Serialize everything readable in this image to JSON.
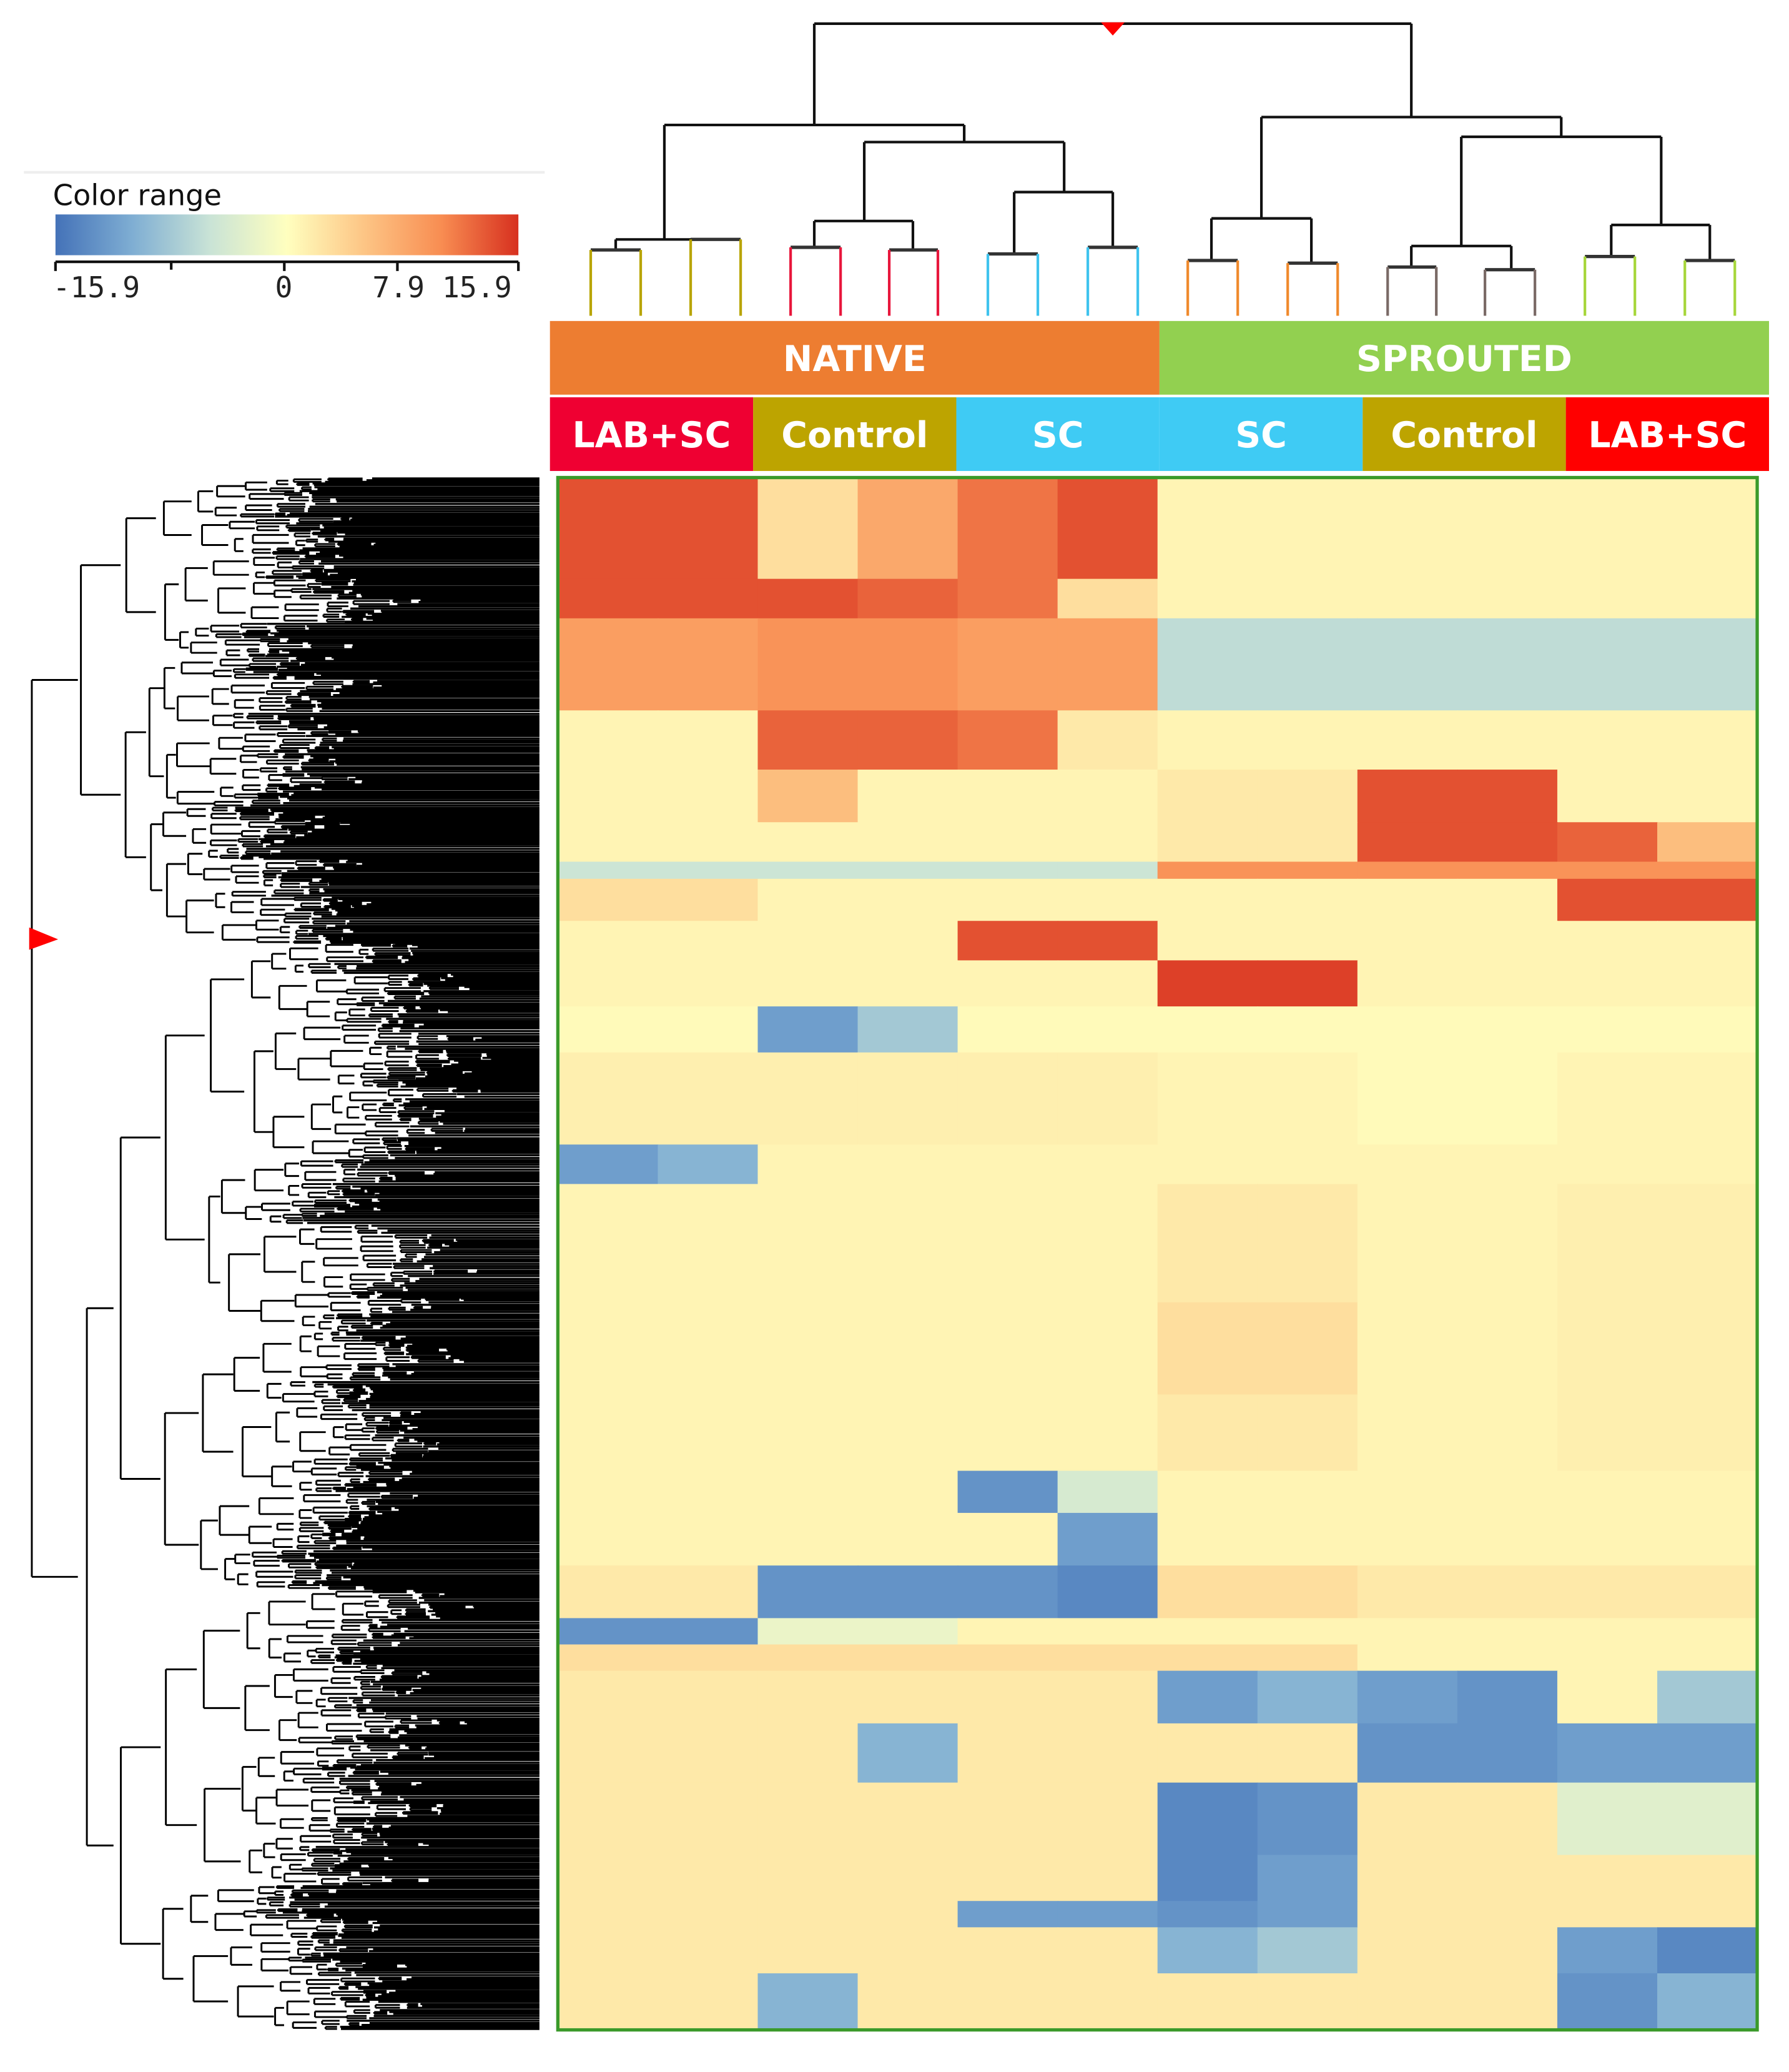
{
  "chart_data": {
    "type": "heatmap",
    "legend": {
      "title": "Color range",
      "ticks": [
        "-15.9",
        "0",
        "7.9",
        "15.9"
      ],
      "min": -15.9,
      "max": 15.9,
      "colors": [
        "#4472B8",
        "#7FAED3",
        "#C9E3D6",
        "#FFFFBF",
        "#FDC585",
        "#F88D52",
        "#D7301F"
      ],
      "placement": "top-left"
    },
    "column_groups": [
      {
        "label": "NATIVE",
        "color": "#ED7D31",
        "span": 6
      },
      {
        "label": "SPROUTED",
        "color": "#92D050",
        "span": 6
      }
    ],
    "column_subgroups": [
      {
        "label": "LAB+SC",
        "color": "#EF0032",
        "span": 2
      },
      {
        "label": "Control",
        "color": "#BDA400",
        "span": 2
      },
      {
        "label": "SC",
        "color": "#3FCBF4",
        "span": 2
      },
      {
        "label": "SC",
        "color": "#3FCBF4",
        "span": 2
      },
      {
        "label": "Control",
        "color": "#BDA400",
        "span": 2
      },
      {
        "label": "LAB+SC",
        "color": "#FF0000",
        "span": 2
      }
    ],
    "column_dendrogram_colors": [
      "#B8A400",
      "#E8173C",
      "#3FC3EE",
      "#F08A2C",
      "#7A6A66",
      "#A6D63A"
    ],
    "row_blocks": [
      {
        "rows": 77,
        "values": [
          14,
          14,
          3,
          8,
          12,
          14,
          1,
          1,
          1,
          1,
          1,
          1
        ]
      },
      {
        "rows": 30,
        "values": [
          14,
          14,
          14,
          13,
          12,
          3,
          1,
          1,
          1,
          1,
          1,
          1
        ]
      },
      {
        "rows": 70,
        "values": [
          9,
          9,
          10,
          10,
          9,
          9,
          -6,
          -6,
          -6,
          -6,
          -6,
          -6
        ]
      },
      {
        "rows": 45,
        "values": [
          1,
          1,
          13,
          13,
          12,
          2,
          1,
          1,
          1,
          1,
          1,
          1
        ]
      },
      {
        "rows": 40,
        "values": [
          1,
          1,
          6,
          1,
          1,
          1,
          2,
          2,
          14,
          14,
          1,
          1
        ]
      },
      {
        "rows": 30,
        "values": [
          1,
          1,
          1,
          1,
          1,
          1,
          2,
          2,
          14,
          14,
          13,
          6
        ]
      },
      {
        "rows": 13,
        "values": [
          -5,
          -5,
          -5,
          -5,
          -5,
          -5,
          10,
          10,
          10,
          10,
          10,
          10
        ]
      },
      {
        "rows": 32,
        "values": [
          3,
          3,
          1,
          1,
          1,
          1,
          1,
          1,
          1,
          1,
          14,
          14
        ]
      },
      {
        "rows": 30,
        "values": [
          1,
          1,
          1,
          1,
          14,
          14,
          1,
          1,
          1,
          1,
          1,
          1
        ]
      },
      {
        "rows": 35,
        "values": [
          1,
          1,
          1,
          1,
          1,
          1,
          15,
          15,
          1,
          1,
          1,
          1
        ]
      },
      {
        "rows": 35,
        "values": [
          0.5,
          0.5,
          -12,
          -8,
          0.5,
          0.5,
          0.5,
          0.5,
          0.5,
          0.5,
          0.5,
          0.5
        ]
      },
      {
        "rows": 70,
        "values": [
          1.5,
          1.5,
          1.5,
          1.5,
          1.5,
          1.5,
          1,
          1,
          0.5,
          0.5,
          1,
          1
        ]
      },
      {
        "rows": 30,
        "values": [
          -12,
          -10,
          1,
          1,
          1,
          1,
          1,
          1,
          1,
          1,
          1,
          1
        ]
      },
      {
        "rows": 90,
        "values": [
          1,
          1,
          1,
          1,
          1,
          1,
          2,
          2,
          1,
          1,
          1.5,
          1.5
        ]
      },
      {
        "rows": 70,
        "values": [
          1,
          1,
          1,
          1,
          1,
          1,
          3,
          3,
          1,
          1,
          1.5,
          1.5
        ]
      },
      {
        "rows": 58,
        "values": [
          1,
          1,
          1,
          1,
          1,
          1,
          2,
          2,
          1,
          1,
          1.5,
          1.5
        ]
      },
      {
        "rows": 32,
        "values": [
          1,
          1,
          1,
          1,
          -13,
          -4,
          1,
          1,
          1,
          1,
          1,
          1
        ]
      },
      {
        "rows": 40,
        "values": [
          1,
          1,
          1,
          1,
          1,
          -12,
          1,
          1,
          1,
          1,
          1,
          1
        ]
      },
      {
        "rows": 40,
        "values": [
          2,
          2,
          -13,
          -13,
          -13,
          -14,
          3,
          3,
          2,
          2,
          2,
          2
        ]
      },
      {
        "rows": 20,
        "values": [
          -13,
          -13,
          -2,
          -2,
          1,
          1,
          1,
          1,
          1,
          1,
          1,
          1
        ]
      },
      {
        "rows": 20,
        "values": [
          3,
          3,
          3,
          3,
          3,
          3,
          3,
          3,
          1,
          1,
          1,
          1
        ]
      },
      {
        "rows": 40,
        "values": [
          2,
          2,
          2,
          2,
          2,
          2,
          -12,
          -10,
          -12,
          -13,
          1,
          -8
        ]
      },
      {
        "rows": 45,
        "values": [
          2,
          2,
          2,
          -10,
          2,
          2,
          2,
          2,
          -13,
          -13,
          -12,
          -12
        ]
      },
      {
        "rows": 55,
        "values": [
          2,
          2,
          2,
          2,
          2,
          2,
          -14,
          -13,
          2,
          2,
          -3,
          -3
        ]
      },
      {
        "rows": 35,
        "values": [
          2,
          2,
          2,
          2,
          2,
          2,
          -14,
          -12,
          2,
          2,
          2,
          2
        ]
      },
      {
        "rows": 20,
        "values": [
          2,
          2,
          2,
          2,
          -12,
          -12,
          -13,
          -12,
          2,
          2,
          2,
          2
        ]
      },
      {
        "rows": 35,
        "values": [
          2,
          2,
          2,
          2,
          2,
          2,
          -10,
          -8,
          2,
          2,
          -12,
          -14
        ]
      },
      {
        "rows": 43,
        "values": [
          2,
          2,
          -10,
          2,
          2,
          2,
          2,
          2,
          2,
          2,
          -13,
          -10
        ]
      }
    ],
    "heatmap_border_color": "#3A9A2A"
  }
}
